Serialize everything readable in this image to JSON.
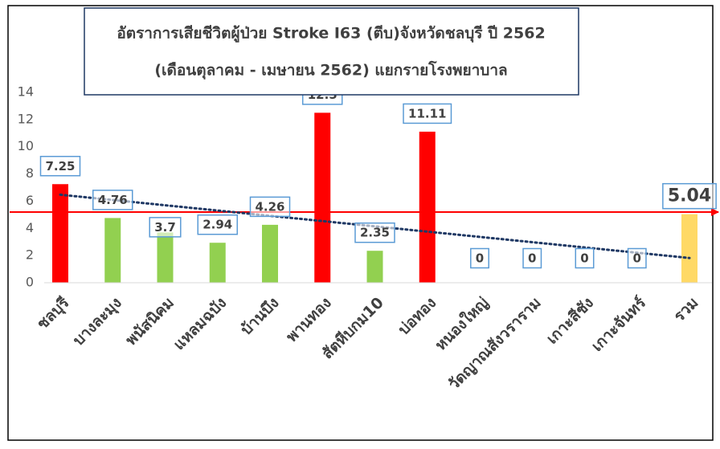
{
  "chart_data": {
    "type": "bar",
    "title": [
      "อัตราการเสียชีวิตผู้ป่วย Stroke I63 (ตีบ)จังหวัดชลบุรี ปี 2562",
      "(เดือนตุลาคม - เมษายน 2562) แยกรายโรงพยาบาล"
    ],
    "categories": [
      "ชลบุรี",
      "บางละมุง",
      "พนัสนิคม",
      "แหลมฉบัง",
      "บ้านบึง",
      "พานทอง",
      "สัตหีบกม10",
      "บ่อทอง",
      "หนองใหญ่",
      "วัดญาณสังวราราม",
      "เกาะสีชัง",
      "เกาะจันทร์",
      "รวม"
    ],
    "values": [
      7.25,
      4.76,
      3.7,
      2.94,
      4.26,
      12.5,
      2.35,
      11.11,
      0,
      0,
      0,
      0,
      5.04
    ],
    "colors": [
      "#ff0000",
      "#92d050",
      "#92d050",
      "#92d050",
      "#92d050",
      "#ff0000",
      "#92d050",
      "#ff0000",
      "#92d050",
      "#92d050",
      "#92d050",
      "#92d050",
      "#ffd966"
    ],
    "ylim": [
      0,
      14
    ],
    "yticks": [
      0,
      2,
      4,
      6,
      8,
      10,
      12,
      14
    ],
    "grid": false,
    "reference_line": 5.2,
    "reference_color": "#ff0000",
    "trendline": "linear",
    "trendline_color": "#1f3864"
  }
}
